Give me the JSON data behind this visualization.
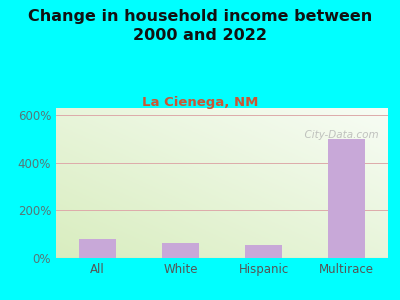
{
  "title": "Change in household income between\n2000 and 2022",
  "subtitle": "La Cienega, NM",
  "categories": [
    "All",
    "White",
    "Hispanic",
    "Multirace"
  ],
  "values": [
    80,
    65,
    55,
    500
  ],
  "bar_color": "#c8a8d8",
  "background_outer": "#00ffff",
  "title_fontsize": 11.5,
  "title_color": "#111111",
  "subtitle_fontsize": 9.5,
  "subtitle_color": "#cc5533",
  "ytick_color": "#557777",
  "xtick_color": "#555555",
  "ylim": [
    0,
    630
  ],
  "yticks": [
    0,
    200,
    400,
    600
  ],
  "ytick_labels": [
    "0%",
    "200%",
    "400%",
    "600%"
  ],
  "grid_color": "#ddaaaa",
  "watermark": "  City-Data.com",
  "watermark_color": "#aaaaaa",
  "chart_bg_top": "#f4f8ee",
  "chart_bg_bottom": "#e8f2d8"
}
